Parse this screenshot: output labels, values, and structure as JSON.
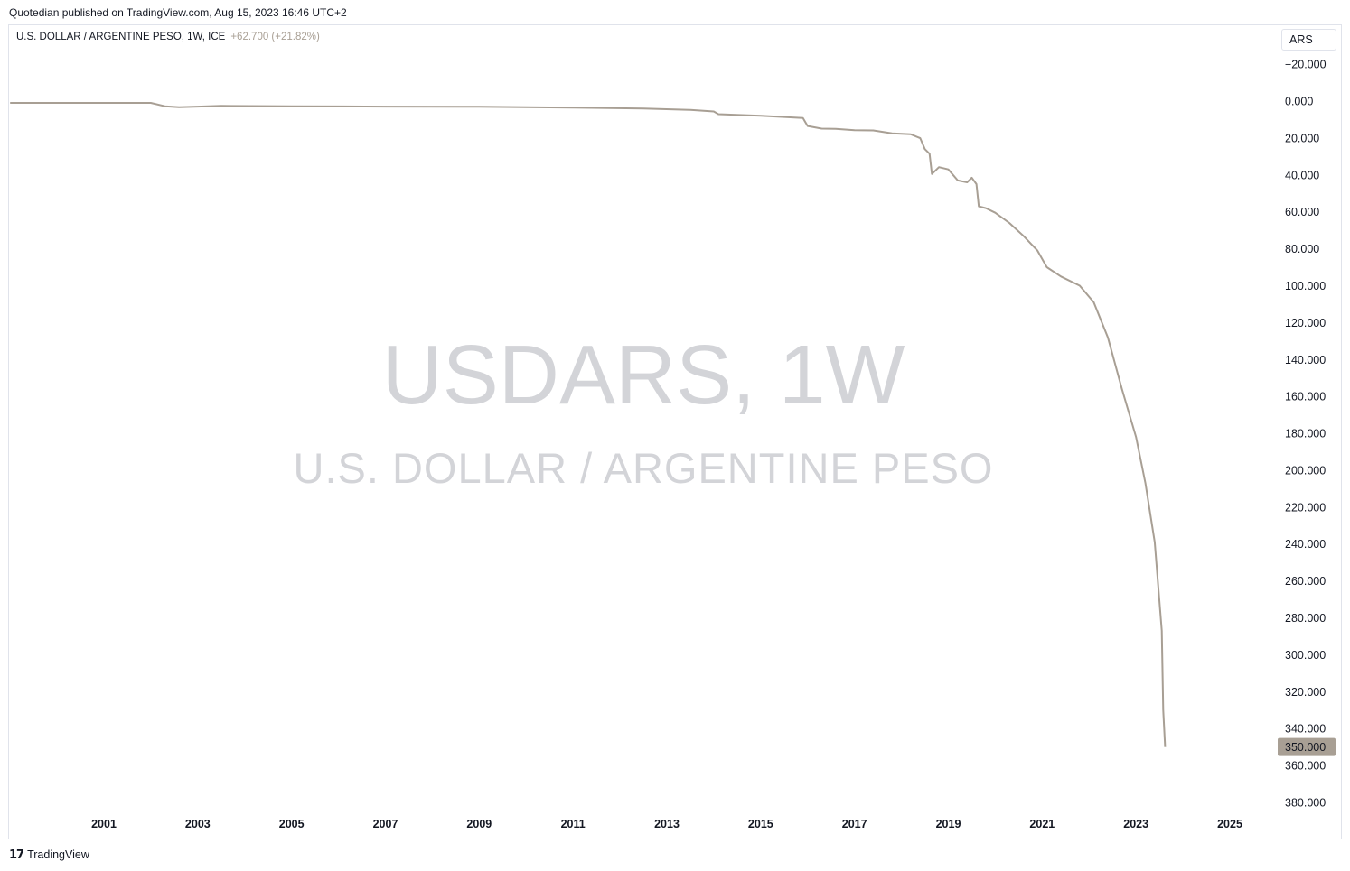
{
  "publisher_line": "Quotedian published on TradingView.com, Aug 15, 2023 16:46 UTC+2",
  "legend": {
    "symbol": "U.S. DOLLAR / ARGENTINE PESO, 1W, ICE",
    "change": "+62.700 (+21.82%)"
  },
  "currency_button": "ARS",
  "watermark": {
    "ticker": "USDARS, 1W",
    "name": "U.S. DOLLAR / ARGENTINE PESO"
  },
  "footer": {
    "logo_icon": "tradingview-logo-icon",
    "brand": "TradingView"
  },
  "colors": {
    "line": "#a89f94",
    "last_price_bg": "#a89f94",
    "watermark": "#d3d4d8",
    "axis_text": "#131722"
  },
  "chart_data": {
    "type": "line",
    "title": "U.S. DOLLAR / ARGENTINE PESO, 1W, ICE",
    "price_axis_inverted": true,
    "ylim": [
      -25,
      390
    ],
    "xlim": [
      1999,
      2026.2
    ],
    "y_ticks": [
      "−20.000",
      "0.000",
      "20.000",
      "40.000",
      "60.000",
      "80.000",
      "100.000",
      "120.000",
      "140.000",
      "160.000",
      "180.000",
      "200.000",
      "220.000",
      "240.000",
      "260.000",
      "280.000",
      "300.000",
      "320.000",
      "340.000",
      "360.000",
      "380.000"
    ],
    "y_tick_values": [
      -20,
      0,
      20,
      40,
      60,
      80,
      100,
      120,
      140,
      160,
      180,
      200,
      220,
      240,
      260,
      280,
      300,
      320,
      340,
      360,
      380
    ],
    "x_ticks": [
      "2001",
      "2003",
      "2005",
      "2007",
      "2009",
      "2011",
      "2013",
      "2015",
      "2017",
      "2019",
      "2021",
      "2023",
      "2025"
    ],
    "x_tick_values": [
      2001,
      2003,
      2005,
      2007,
      2009,
      2011,
      2013,
      2015,
      2017,
      2019,
      2021,
      2023,
      2025
    ],
    "last_price_label": "350.000",
    "last_price": 350,
    "series": [
      {
        "x": [
          1999.0,
          2002.0,
          2002.3,
          2002.6,
          2003.0,
          2003.5,
          2005.0,
          2007.0,
          2009.0,
          2011.0,
          2012.5,
          2013.5,
          2014.0,
          2014.1,
          2015.0,
          2015.9,
          2016.0,
          2016.3,
          2016.6,
          2017.0,
          2017.4,
          2017.8,
          2018.2,
          2018.4,
          2018.5,
          2018.6,
          2018.65,
          2018.8,
          2019.0,
          2019.2,
          2019.4,
          2019.5,
          2019.6,
          2019.65,
          2019.8,
          2020.0,
          2020.3,
          2020.6,
          2020.9,
          2021.1,
          2021.4,
          2021.8,
          2022.1,
          2022.4,
          2022.7,
          2023.0,
          2023.2,
          2023.4,
          2023.55,
          2023.58,
          2023.62
        ],
        "y": [
          1.0,
          1.0,
          2.8,
          3.3,
          3.0,
          2.6,
          2.8,
          3.0,
          3.1,
          3.5,
          4.0,
          4.8,
          5.6,
          7.1,
          7.9,
          9.2,
          13.5,
          14.9,
          15.0,
          15.8,
          15.9,
          17.5,
          18.0,
          20.1,
          26.0,
          28.5,
          39.5,
          35.8,
          37.0,
          43.0,
          44.0,
          41.5,
          45.0,
          57.0,
          58.0,
          60.5,
          66.0,
          73.0,
          81.0,
          90.0,
          95.0,
          100.0,
          109.0,
          128.0,
          156.0,
          182.0,
          207.0,
          239.0,
          287.0,
          330.0,
          350.0
        ]
      }
    ]
  }
}
